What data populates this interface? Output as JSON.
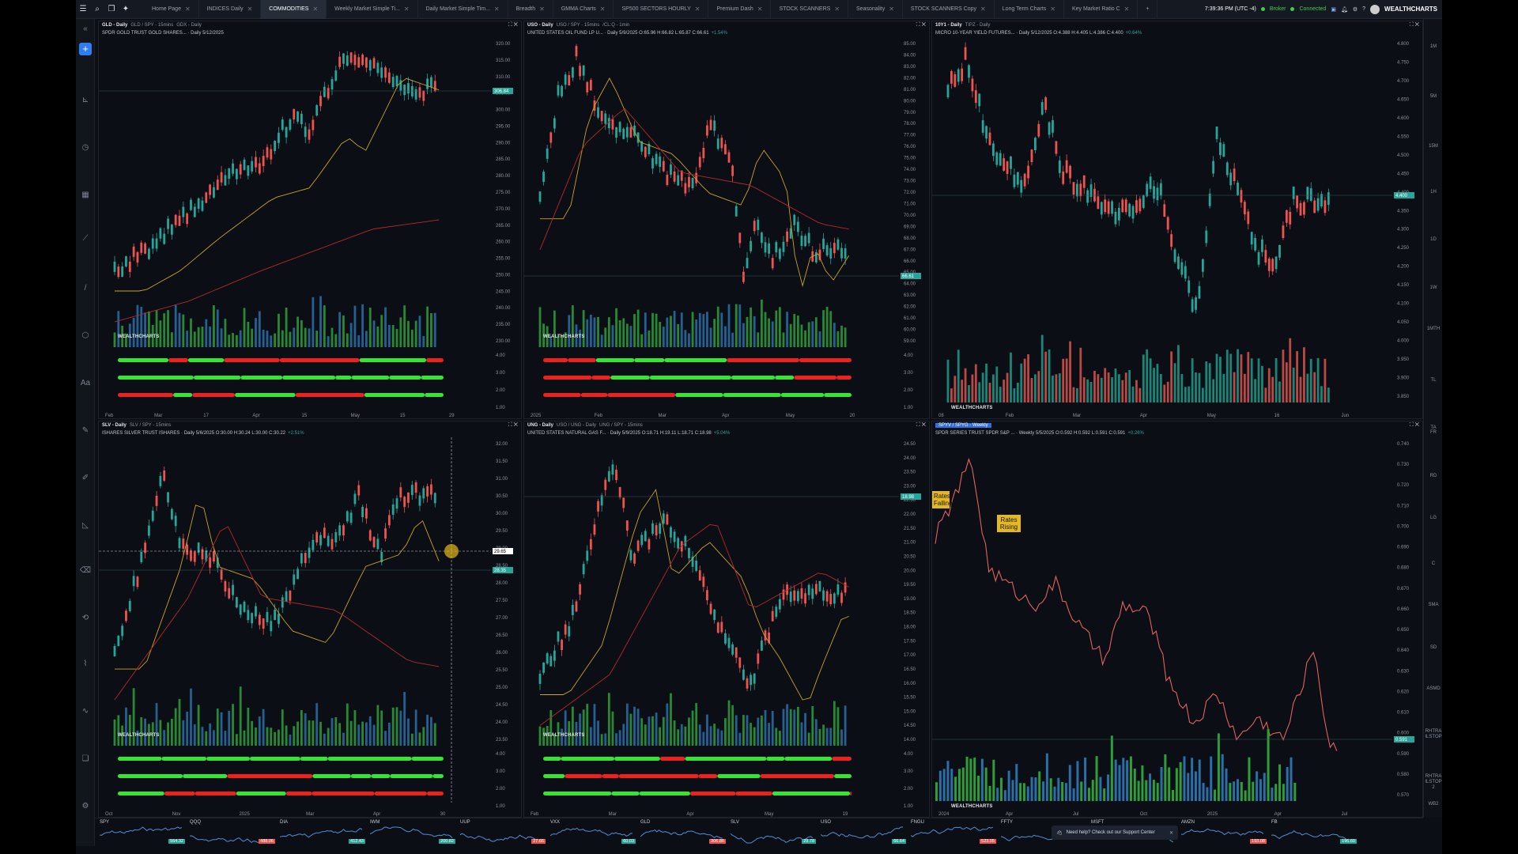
{
  "topbar": {
    "tabs": [
      "Home Page",
      "INDICES Daily",
      "COMMODITIES",
      "Weekly Market Simple Ti...",
      "Daily Market Simple Tim...",
      "Breadth",
      "GMMA Charts",
      "SP500 SECTORS HOURLY",
      "Premium Dash",
      "STOCK SCANNERS",
      "Seasonality",
      "STOCK SCANNERS Copy",
      "Long Term Charts",
      "Key Market Ratio C"
    ],
    "active_tab": "COMMODITIES",
    "add_tab": "+",
    "clock": "7:39:36 PM  (UTC -4)",
    "broker_label": "Broker",
    "connected_label": "Connected",
    "brand": "WEALTHCHARTS",
    "icons": [
      "menu-icon",
      "search-icon",
      "layout-icon",
      "ai-icon",
      "save-icon",
      "bell-icon",
      "gear-icon",
      "help-icon",
      "avatar"
    ]
  },
  "left_toolbar": {
    "icons": [
      "collapse-icon",
      "add-icon",
      "measure-icon",
      "clock-icon",
      "calendar-icon",
      "trend-icon",
      "line-tool-icon",
      "shape-icon",
      "text-icon",
      "pencil-icon",
      "brush-icon",
      "ruler-icon",
      "eraser-icon",
      "cycle-icon",
      "indicator-icon",
      "pattern-icon",
      "layers-icon",
      "settings-icon"
    ],
    "text_tool": "Aa"
  },
  "right_toolbar": {
    "timeframes": [
      "1M",
      "5M",
      "15M",
      "1H",
      "1D",
      "1W",
      "1MTH",
      "TL",
      "TA"
    ],
    "indicators": [
      "FR",
      "RD",
      "LG",
      "C",
      "SMA",
      "SD",
      "ASMD",
      "RHTRA ILSTOP",
      "RHTRA ILSTOP 2",
      "WB2"
    ]
  },
  "panels": [
    {
      "id": "gld",
      "tabs": [
        "GLD - Daily",
        "GLD / SPY - 15mins",
        "GDX - Daily"
      ],
      "info": "SPDR GOLD TRUST GOLD SHARES... · Daily  5/12/2025",
      "price_tag": "306.84",
      "y_ticks": [
        "320.00",
        "315.00",
        "310.00",
        "305.00",
        "300.00",
        "295.00",
        "290.00",
        "285.00",
        "280.00",
        "275.00",
        "270.00",
        "265.00",
        "260.00",
        "255.00",
        "250.00",
        "245.00",
        "240.00",
        "235.00",
        "230.00",
        "4.00",
        "3.00",
        "2.00",
        "1.00"
      ],
      "x_ticks": [
        "Feb",
        "Mar",
        "17",
        "Apr",
        "15",
        "May",
        "15",
        "29"
      ],
      "watermark": "WEALTHCHARTS"
    },
    {
      "id": "uso",
      "tabs": [
        "USO - Daily",
        "USO / SPY - 15mins",
        "/CL:Q - 1min"
      ],
      "info": "UNITED STATES OIL FUND LP U... · Daily  5/9/2025  O:65.96 H:66.82 L:65.87 C:66.61",
      "change": "+1.54%",
      "price_tag": "66.61",
      "y_ticks": [
        "85.00",
        "84.00",
        "83.00",
        "82.00",
        "81.00",
        "80.00",
        "79.00",
        "78.00",
        "77.00",
        "76.00",
        "75.00",
        "74.00",
        "73.00",
        "72.00",
        "71.00",
        "70.00",
        "69.00",
        "68.00",
        "67.00",
        "66.00",
        "65.00",
        "64.00",
        "63.00",
        "62.00",
        "61.00",
        "60.00",
        "59.00",
        "4.00",
        "3.00",
        "2.00",
        "1.00"
      ],
      "x_ticks": [
        "2025",
        "Feb",
        "Mar",
        "Apr",
        "May",
        "20"
      ],
      "watermark": "WEALTHCHARTS"
    },
    {
      "id": "10y",
      "tabs": [
        "10Y1 - Daily",
        "TIPZ - Daily"
      ],
      "info": "MICRO 10-YEAR YIELD FUTURES... · Daily  5/12/2025  O:4.388 H:4.405 L:4.386 C:4.400",
      "change": "+0.64%",
      "price_tag": "4.400",
      "y_ticks": [
        "4.800",
        "4.750",
        "4.700",
        "4.650",
        "4.600",
        "4.550",
        "4.500",
        "4.450",
        "4.400",
        "4.350",
        "4.300",
        "4.250",
        "4.200",
        "4.150",
        "4.100",
        "4.050",
        "4.000",
        "3.950",
        "3.900",
        "3.850"
      ],
      "x_ticks": [
        "08",
        "Feb",
        "Mar",
        "Apr",
        "May",
        "16",
        "Jun"
      ],
      "watermark": "WEALTHCHARTS"
    },
    {
      "id": "slv",
      "tabs": [
        "SLV - Daily",
        "SLV / SPY - 15mins"
      ],
      "info": "ISHARES SILVER TRUST ISHARES · Daily  5/6/2025  O:30.00 H:30.24 L:30.00 C:30.22",
      "change": "+2.51%",
      "price_tag": "28.35",
      "cursor_tag": "29.65",
      "y_ticks": [
        "32.00",
        "31.50",
        "31.00",
        "30.50",
        "30.00",
        "29.50",
        "29.00",
        "28.50",
        "28.00",
        "27.50",
        "27.00",
        "26.50",
        "26.00",
        "25.50",
        "25.00",
        "24.50",
        "24.00",
        "23.50",
        "4.00",
        "3.00",
        "2.00",
        "1.00"
      ],
      "x_ticks": [
        "Oct",
        "Nov",
        "2025",
        "Mar",
        "Apr",
        "30"
      ],
      "watermark": "WEALTHCHARTS"
    },
    {
      "id": "ung",
      "tabs": [
        "UNG - Daily",
        "USO / UNG - Daily",
        "UNG / SPY - 15mins"
      ],
      "info": "UNITED STATES NATURAL GAS F... · Daily  5/9/2025  O:18.71 H:19.11 L:18.71 C:18.98",
      "change": "+5.04%",
      "price_tag": "18.98",
      "y_ticks": [
        "24.50",
        "24.00",
        "23.50",
        "23.00",
        "22.50",
        "22.00",
        "21.50",
        "21.00",
        "20.50",
        "20.00",
        "19.50",
        "19.00",
        "18.50",
        "18.00",
        "17.50",
        "17.00",
        "16.50",
        "16.00",
        "15.50",
        "15.00",
        "14.50",
        "14.00",
        "4.00",
        "3.00",
        "2.00",
        "1.00"
      ],
      "x_ticks": [
        "Feb",
        "Mar",
        "Apr",
        "May",
        "19"
      ],
      "watermark": "WEALTHCHARTS"
    },
    {
      "id": "spyv",
      "tabs": [
        "SPYV / SPYG - Weekly"
      ],
      "info": "SPDR SERIES TRUST SPDR S&P ... · Weekly  5/5/2025  O:0.592 H:0.592 L:0.591 C:0.591",
      "change": "+0.26%",
      "price_tag": "0.591",
      "y_ticks": [
        "0.740",
        "0.730",
        "0.720",
        "0.710",
        "0.700",
        "0.690",
        "0.680",
        "0.670",
        "0.660",
        "0.650",
        "0.640",
        "0.630",
        "0.620",
        "0.610",
        "0.600",
        "0.590",
        "0.580",
        "0.570"
      ],
      "x_ticks": [
        "2024",
        "Apr",
        "Jul",
        "Oct",
        "2025",
        "Apr",
        "Jul"
      ],
      "notes": [
        "Rates Rising",
        "Rates Falling"
      ],
      "watermark": "WEALTHCHARTS"
    }
  ],
  "tickers": [
    {
      "sym": "SPY",
      "val": "564.32",
      "color": "#26a69a"
    },
    {
      "sym": "QQQ",
      "val": "488.06",
      "color": "#ef5350"
    },
    {
      "sym": "DIA",
      "val": "412.43",
      "color": "#26a69a"
    },
    {
      "sym": "IWM",
      "val": "200.82",
      "color": "#26a69a"
    },
    {
      "sym": "UUP",
      "val": "27.66",
      "color": "#ef5350"
    },
    {
      "sym": "VXX",
      "val": "60.03",
      "color": "#26a69a"
    },
    {
      "sym": "GLD",
      "val": "306.86",
      "color": "#ef5350"
    },
    {
      "sym": "SLV",
      "val": "29.78",
      "color": "#26a69a"
    },
    {
      "sym": "USO",
      "val": "66.64",
      "color": "#26a69a"
    },
    {
      "sym": "FNGU",
      "val": "523.05",
      "color": "#ef5350"
    },
    {
      "sym": "FFTY",
      "val": "",
      "color": "#26a69a"
    },
    {
      "sym": "MSFT",
      "val": "",
      "color": "#26a69a"
    },
    {
      "sym": "AMZN",
      "val": "193.08",
      "color": "#ef5350"
    },
    {
      "sym": "FB",
      "val": "196.60",
      "color": "#26a69a"
    }
  ],
  "help": {
    "text": "Need help? Check out our Support Center"
  },
  "colors": {
    "bull": "#26a69a",
    "bear": "#ef5350",
    "ma_gold": "#c9a227",
    "ma_red": "#b22a2a",
    "accent": "#2f7cf6",
    "bar_green": "#32e632",
    "bar_red": "#ef2020"
  }
}
